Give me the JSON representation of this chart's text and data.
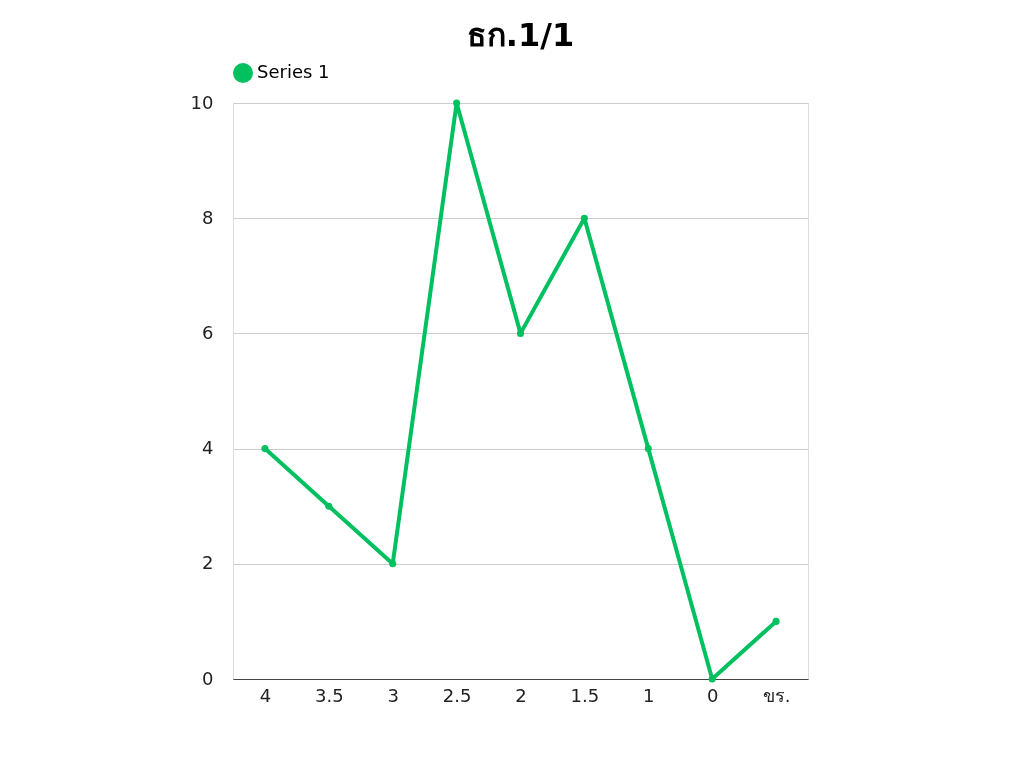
{
  "chart_data": {
    "type": "line",
    "title": "ธก.1/1",
    "categories": [
      "4",
      "3.5",
      "3",
      "2.5",
      "2",
      "1.5",
      "1",
      "0",
      "ขร."
    ],
    "series": [
      {
        "name": "Series 1",
        "color": "#00c060",
        "values": [
          4,
          3,
          2,
          10,
          6,
          8,
          4,
          0,
          1
        ]
      }
    ],
    "ylim": [
      0,
      10
    ],
    "yticks": [
      0,
      2,
      4,
      6,
      8,
      10
    ],
    "grid": "y",
    "legend": "top",
    "marker": "circle",
    "line_style": "solid"
  }
}
